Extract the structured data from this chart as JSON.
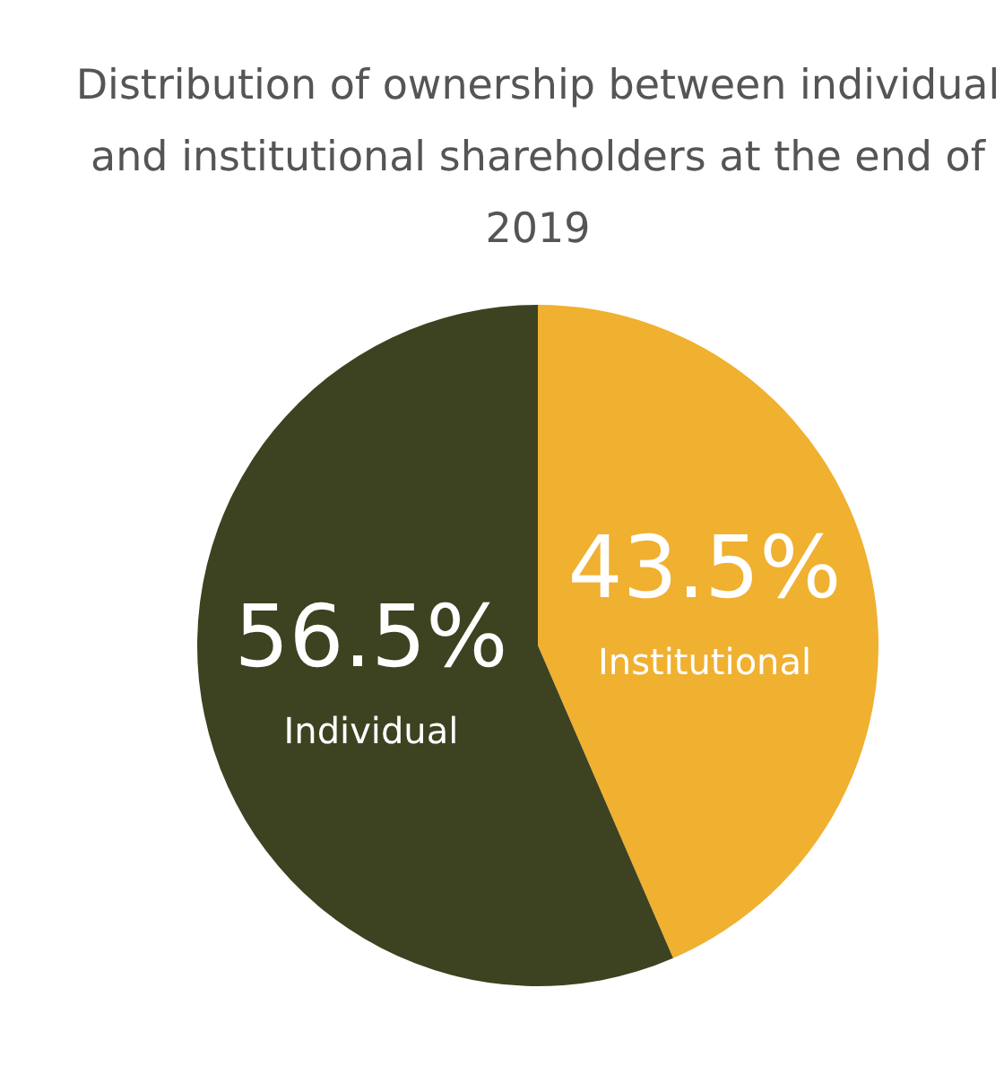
{
  "chart_data": {
    "type": "pie",
    "title": "Distribution of ownership between individual and institutional shareholders at the end of 2019",
    "categories": [
      "Institutional",
      "Individual"
    ],
    "values": [
      43.5,
      56.5
    ],
    "value_labels": [
      "43.5%",
      "56.5%"
    ],
    "colors": [
      "#f0b030",
      "#3d4220"
    ],
    "legend": false
  }
}
